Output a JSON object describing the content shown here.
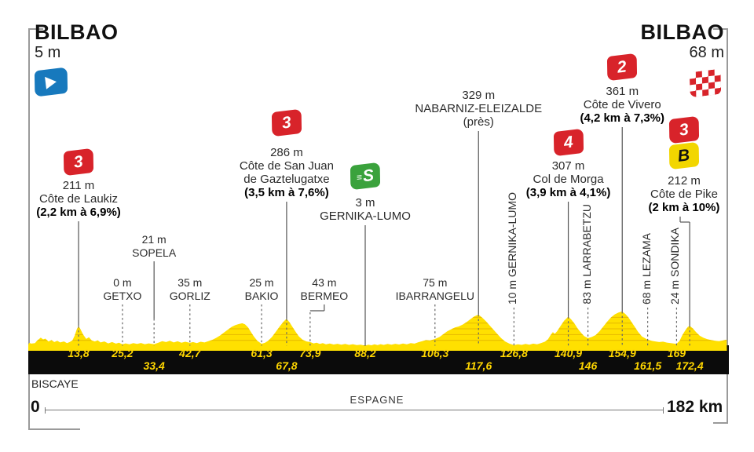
{
  "header": {
    "start": {
      "name": "BILBAO",
      "elevation": "5 m"
    },
    "finish": {
      "name": "BILBAO",
      "elevation": "68 m"
    }
  },
  "footer": {
    "region": "BISCAYE",
    "country": "ESPAGNE",
    "scale_start": "0",
    "scale_end": "182 km"
  },
  "colors": {
    "profile_yellow": "#ffe000",
    "contour": "#d89f00",
    "bar_black": "#0b0b0b",
    "km_text": "#ffd600",
    "flag_red": "#d8232a",
    "flag_green": "#3aa23c",
    "flag_bonus_yellow": "#f2d600",
    "flag_start_blue": "#1779bd",
    "line_gray": "#555"
  },
  "chart_data": {
    "type": "area",
    "title": "Stage profile Bilbao - Bilbao, 182 km",
    "x_unit": "km",
    "y_unit": "m",
    "x_range": [
      0,
      182
    ],
    "y_range": [
      0,
      400
    ],
    "grid": "elevation contour stripes inside area",
    "profile": [
      [
        0,
        12
      ],
      [
        1,
        35
      ],
      [
        1.5,
        25
      ],
      [
        2.5,
        30
      ],
      [
        3,
        55
      ],
      [
        4,
        88
      ],
      [
        4.6,
        70
      ],
      [
        5.2,
        78
      ],
      [
        6,
        48
      ],
      [
        6.8,
        62
      ],
      [
        7.5,
        42
      ],
      [
        8.3,
        55
      ],
      [
        9,
        38
      ],
      [
        10,
        48
      ],
      [
        10.8,
        30
      ],
      [
        11.5,
        42
      ],
      [
        12.2,
        60
      ],
      [
        12.8,
        110
      ],
      [
        13.3,
        170
      ],
      [
        13.8,
        211
      ],
      [
        14.3,
        175
      ],
      [
        15,
        120
      ],
      [
        15.8,
        75
      ],
      [
        16.5,
        92
      ],
      [
        17.2,
        60
      ],
      [
        18,
        48
      ],
      [
        18.8,
        60
      ],
      [
        19.5,
        38
      ],
      [
        20.5,
        48
      ],
      [
        21.5,
        28
      ],
      [
        22.5,
        42
      ],
      [
        23.5,
        25
      ],
      [
        24.3,
        35
      ],
      [
        25.2,
        18
      ],
      [
        26,
        28
      ],
      [
        27,
        18
      ],
      [
        28,
        30
      ],
      [
        29,
        22
      ],
      [
        30,
        32
      ],
      [
        31,
        20
      ],
      [
        32,
        28
      ],
      [
        33.4,
        20
      ],
      [
        34.5,
        35
      ],
      [
        35.5,
        52
      ],
      [
        36.5,
        42
      ],
      [
        37.5,
        55
      ],
      [
        38.5,
        38
      ],
      [
        39.5,
        50
      ],
      [
        40.5,
        35
      ],
      [
        41.5,
        45
      ],
      [
        42.7,
        34
      ],
      [
        43.5,
        42
      ],
      [
        44.5,
        30
      ],
      [
        45.5,
        45
      ],
      [
        46.5,
        38
      ],
      [
        47.5,
        52
      ],
      [
        48.5,
        65
      ],
      [
        49.5,
        85
      ],
      [
        50.5,
        110
      ],
      [
        51.5,
        140
      ],
      [
        52.5,
        170
      ],
      [
        53.5,
        200
      ],
      [
        54.5,
        220
      ],
      [
        55.5,
        232
      ],
      [
        56.3,
        238
      ],
      [
        57,
        228
      ],
      [
        57.8,
        195
      ],
      [
        58.5,
        150
      ],
      [
        59.3,
        100
      ],
      [
        60.2,
        55
      ],
      [
        61.3,
        24
      ],
      [
        62.2,
        35
      ],
      [
        63,
        55
      ],
      [
        64,
        95
      ],
      [
        65,
        150
      ],
      [
        66,
        205
      ],
      [
        67,
        255
      ],
      [
        67.8,
        286
      ],
      [
        68.6,
        245
      ],
      [
        69.4,
        195
      ],
      [
        70.2,
        145
      ],
      [
        71,
        100
      ],
      [
        72,
        65
      ],
      [
        73,
        48
      ],
      [
        73.9,
        42
      ],
      [
        74.8,
        28
      ],
      [
        75.6,
        35
      ],
      [
        76.4,
        22
      ],
      [
        77.2,
        30
      ],
      [
        78,
        18
      ],
      [
        79,
        26
      ],
      [
        80,
        16
      ],
      [
        81,
        24
      ],
      [
        82,
        14
      ],
      [
        83,
        22
      ],
      [
        84,
        12
      ],
      [
        85,
        20
      ],
      [
        86,
        10
      ],
      [
        87,
        14
      ],
      [
        88.2,
        4
      ],
      [
        89,
        14
      ],
      [
        89.8,
        8
      ],
      [
        90.6,
        18
      ],
      [
        91.4,
        10
      ],
      [
        92.2,
        20
      ],
      [
        93,
        12
      ],
      [
        94,
        22
      ],
      [
        95,
        14
      ],
      [
        96,
        24
      ],
      [
        97,
        16
      ],
      [
        98,
        26
      ],
      [
        99,
        18
      ],
      [
        100,
        30
      ],
      [
        101,
        25
      ],
      [
        102,
        40
      ],
      [
        103,
        52
      ],
      [
        104,
        62
      ],
      [
        105,
        58
      ],
      [
        106.3,
        74
      ],
      [
        107.5,
        95
      ],
      [
        108.5,
        125
      ],
      [
        109.5,
        155
      ],
      [
        110.5,
        175
      ],
      [
        111.5,
        195
      ],
      [
        112.5,
        205
      ],
      [
        113.5,
        225
      ],
      [
        114.5,
        250
      ],
      [
        115.5,
        280
      ],
      [
        116.5,
        310
      ],
      [
        117.6,
        329
      ],
      [
        118.6,
        295
      ],
      [
        119.5,
        260
      ],
      [
        120.5,
        215
      ],
      [
        121.5,
        170
      ],
      [
        122.5,
        125
      ],
      [
        123.5,
        82
      ],
      [
        124.5,
        48
      ],
      [
        125.6,
        25
      ],
      [
        126.8,
        10
      ],
      [
        127.8,
        18
      ],
      [
        128.8,
        12
      ],
      [
        129.8,
        22
      ],
      [
        130.8,
        15
      ],
      [
        131.8,
        25
      ],
      [
        132.8,
        18
      ],
      [
        133.8,
        30
      ],
      [
        134.8,
        45
      ],
      [
        135.6,
        70
      ],
      [
        136.3,
        115
      ],
      [
        136.9,
        145
      ],
      [
        137.4,
        128
      ],
      [
        138,
        155
      ],
      [
        138.8,
        205
      ],
      [
        139.8,
        265
      ],
      [
        140.9,
        307
      ],
      [
        141.7,
        275
      ],
      [
        142.5,
        235
      ],
      [
        143.3,
        185
      ],
      [
        144.2,
        140
      ],
      [
        145,
        105
      ],
      [
        146,
        83
      ],
      [
        147,
        95
      ],
      [
        148,
        115
      ],
      [
        149,
        155
      ],
      [
        150,
        205
      ],
      [
        151,
        255
      ],
      [
        152,
        300
      ],
      [
        153,
        332
      ],
      [
        154,
        352
      ],
      [
        154.9,
        361
      ],
      [
        155.7,
        335
      ],
      [
        156.5,
        300
      ],
      [
        157.3,
        252
      ],
      [
        158.2,
        198
      ],
      [
        159,
        148
      ],
      [
        160,
        100
      ],
      [
        161.5,
        66
      ],
      [
        162.5,
        55
      ],
      [
        163.5,
        48
      ],
      [
        164.5,
        42
      ],
      [
        165.5,
        46
      ],
      [
        166.5,
        36
      ],
      [
        167.5,
        30
      ],
      [
        169,
        23
      ],
      [
        169.8,
        55
      ],
      [
        170.5,
        115
      ],
      [
        171.2,
        160
      ],
      [
        171.9,
        198
      ],
      [
        172.4,
        212
      ],
      [
        173.2,
        185
      ],
      [
        174,
        148
      ],
      [
        175,
        108
      ],
      [
        176,
        86
      ],
      [
        177,
        72
      ],
      [
        178,
        62
      ],
      [
        179,
        56
      ],
      [
        180,
        52
      ],
      [
        181,
        58
      ],
      [
        182,
        66
      ]
    ],
    "climbs": [
      {
        "km": 13.8,
        "km_label": "13,8",
        "row": 1,
        "alt": "211 m",
        "alt_m": 211,
        "name_lines": [
          "Côte de Laukiz"
        ],
        "stats": "(2,2 km à 6,9%)",
        "flags": [
          "cat3"
        ],
        "flag_labels": [
          "3"
        ],
        "flag_top": 191,
        "text_top": 228
      },
      {
        "km": 67.8,
        "km_label": "67,8",
        "row": 2,
        "alt": "286 m",
        "alt_m": 286,
        "name_lines": [
          "Côte de San Juan",
          "de Gaztelugatxe"
        ],
        "stats": "(3,5 km à 7,6%)",
        "flags": [
          "cat3"
        ],
        "flag_labels": [
          "3"
        ],
        "flag_top": 141,
        "text_top": 186
      },
      {
        "km": 88.2,
        "km_label": "88,2",
        "row": 1,
        "alt": "3 m",
        "alt_m": 3,
        "name_lines": [
          "GERNIKA-LUMO"
        ],
        "stats": "",
        "flags": [
          "sprint"
        ],
        "flag_labels": [
          "S"
        ],
        "flag_top": 209,
        "text_top": 250
      },
      {
        "km": 117.6,
        "km_label": "117,6",
        "row": 2,
        "alt": "329 m",
        "alt_m": 329,
        "name_lines": [
          "NABARNIZ-ELEIZALDE"
        ],
        "stats_plain": "(près)",
        "flags": [],
        "flag_labels": [],
        "text_top": 113
      },
      {
        "km": 140.9,
        "km_label": "140,9",
        "row": 1,
        "alt": "307 m",
        "alt_m": 307,
        "name_lines": [
          "Col de Morga"
        ],
        "stats": "(3,9 km à 4,1%)",
        "flags": [
          "cat4"
        ],
        "flag_labels": [
          "4"
        ],
        "flag_top": 166,
        "text_top": 203
      },
      {
        "km": 154.9,
        "km_label": "154,9",
        "row": 1,
        "alt": "361 m",
        "alt_m": 361,
        "name_lines": [
          "Côte de Vivero"
        ],
        "stats": "(4,2 km à 7,3%)",
        "flags": [
          "cat2"
        ],
        "flag_labels": [
          "2"
        ],
        "flag_top": 70,
        "text_top": 108
      },
      {
        "km": 172.4,
        "km_label": "172,4",
        "row": 2,
        "alt": "212 m",
        "alt_m": 212,
        "name_lines": [
          "Côte de Pike"
        ],
        "stats": "(2 km à 10%)",
        "flags": [
          "cat3",
          "bonus"
        ],
        "flag_labels": [
          "3",
          "B"
        ],
        "flag_top": 150,
        "text_top": 222,
        "center_x": 871,
        "elbow": "right"
      }
    ],
    "towns": [
      {
        "km": 25.2,
        "km_label": "25,2",
        "row": 1,
        "alt": "0 m",
        "name": "GETXO",
        "orient": "h",
        "text_top": 352
      },
      {
        "km": 33.4,
        "km_label": "33,4",
        "row": 2,
        "alt": "21 m",
        "name": "SOPELA",
        "orient": "h",
        "text_top": 297,
        "upper_solid": true
      },
      {
        "km": 42.7,
        "km_label": "42,7",
        "row": 1,
        "alt": "35 m",
        "name": "GORLIZ",
        "orient": "h",
        "text_top": 352
      },
      {
        "km": 61.3,
        "km_label": "61,3",
        "row": 1,
        "alt": "25 m",
        "name": "BAKIO",
        "orient": "h",
        "text_top": 352
      },
      {
        "km": 73.9,
        "km_label": "73,9",
        "row": 1,
        "alt": "43 m",
        "name": "BERMEO",
        "orient": "h",
        "text_top": 352,
        "label_dx": 18,
        "elbow": "left"
      },
      {
        "km": 106.3,
        "km_label": "106,3",
        "row": 1,
        "alt": "75 m",
        "name": "IBARRANGELU",
        "orient": "h",
        "text_top": 352
      },
      {
        "km": 126.8,
        "km_label": "126,8",
        "row": 1,
        "alt": "10 m",
        "name": "GERNIKA-LUMO",
        "orient": "v"
      },
      {
        "km": 146,
        "km_label": "146",
        "row": 2,
        "alt": "83 m",
        "name": "LARRABETZU",
        "orient": "v"
      },
      {
        "km": 161.5,
        "km_label": "161,5",
        "row": 2,
        "alt": "68 m",
        "name": "LEZAMA",
        "orient": "v"
      },
      {
        "km": 169,
        "km_label": "169",
        "row": 1,
        "alt": "24 m",
        "name": "SONDIKA",
        "orient": "v"
      }
    ]
  }
}
